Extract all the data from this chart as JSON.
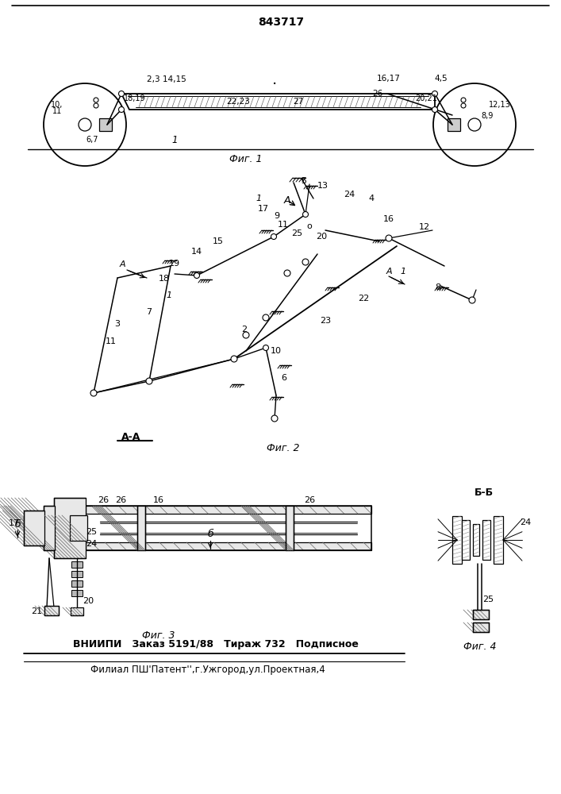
{
  "patent_number": "843717",
  "fig1_caption": "Фиг. 1",
  "fig2_caption": "Фиг. 2",
  "fig3_caption": "Фиг. 3",
  "fig4_caption": "Фиг. 4",
  "aa_label": "А-А",
  "bb_label": "Б-Б",
  "footer_line1": "ВНИИПИ   Заказ 5191/88   Тираж 732   Подписное",
  "footer_line2": "Филиал ПШ'Патент'',г.Ужгород,ул.Проектная,4",
  "bg_color": "#ffffff",
  "line_color": "#000000"
}
